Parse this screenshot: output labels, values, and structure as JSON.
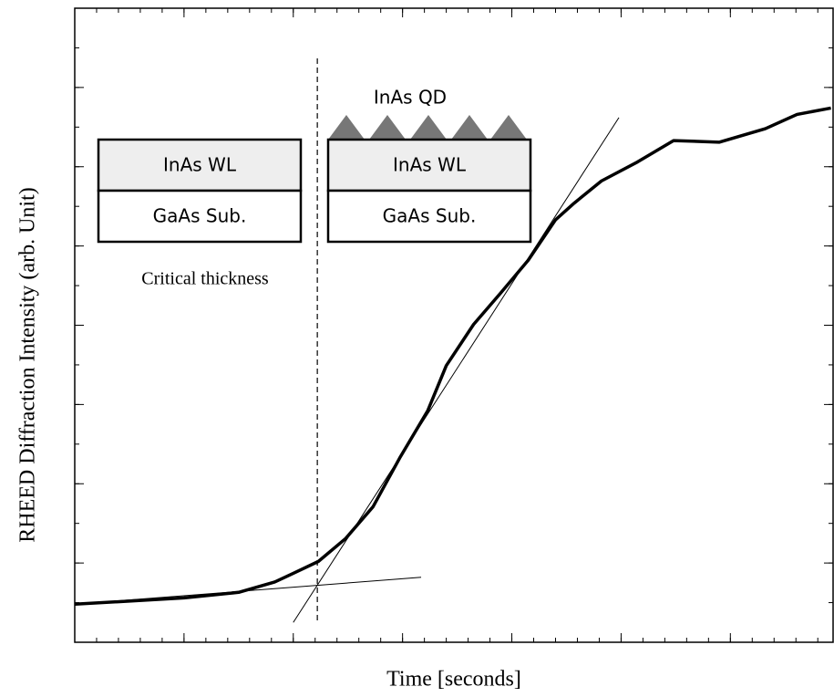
{
  "chart_data": {
    "type": "line",
    "x_label": "Time [seconds]",
    "y_label": "RHEED Diffraction Intensity (arb. Unit)",
    "x": [
      0,
      0.5,
      1.0,
      1.5,
      1.83,
      2.0,
      2.23,
      2.48,
      2.73,
      2.98,
      3.23,
      3.4,
      3.65,
      3.9,
      4.15,
      4.4,
      4.57,
      4.82,
      5.15,
      5.48,
      5.9,
      6.32,
      6.61,
      6.92
    ],
    "series": [
      {
        "color": "#000000",
        "values": [
          0.48,
          0.52,
          0.56,
          0.63,
          0.76,
          0.87,
          1.02,
          1.31,
          1.71,
          2.34,
          2.92,
          3.49,
          4.01,
          4.41,
          4.82,
          5.33,
          5.54,
          5.82,
          6.06,
          6.33,
          6.31,
          6.48,
          6.66,
          6.74
        ]
      }
    ],
    "fit_lines": [
      {
        "x": [
          0,
          3.17
        ],
        "y": [
          0.48,
          0.82
        ]
      },
      {
        "x": [
          2.0,
          4.98
        ],
        "y": [
          0.25,
          6.62
        ]
      }
    ],
    "critical_x": 2.22,
    "xlim": [
      0,
      6.94
    ],
    "ylim": [
      0,
      8
    ],
    "xticks": [
      0,
      1,
      2,
      3,
      4,
      5,
      6
    ],
    "yticks": [
      1,
      2,
      3,
      4,
      5,
      6,
      7
    ],
    "schematics": [
      {
        "layers": [
          "InAs WL",
          "GaAs Sub."
        ],
        "caption": "Critical thickness"
      },
      {
        "top": "InAs QD",
        "layers": [
          "InAs WL",
          "GaAs Sub."
        ]
      }
    ]
  }
}
